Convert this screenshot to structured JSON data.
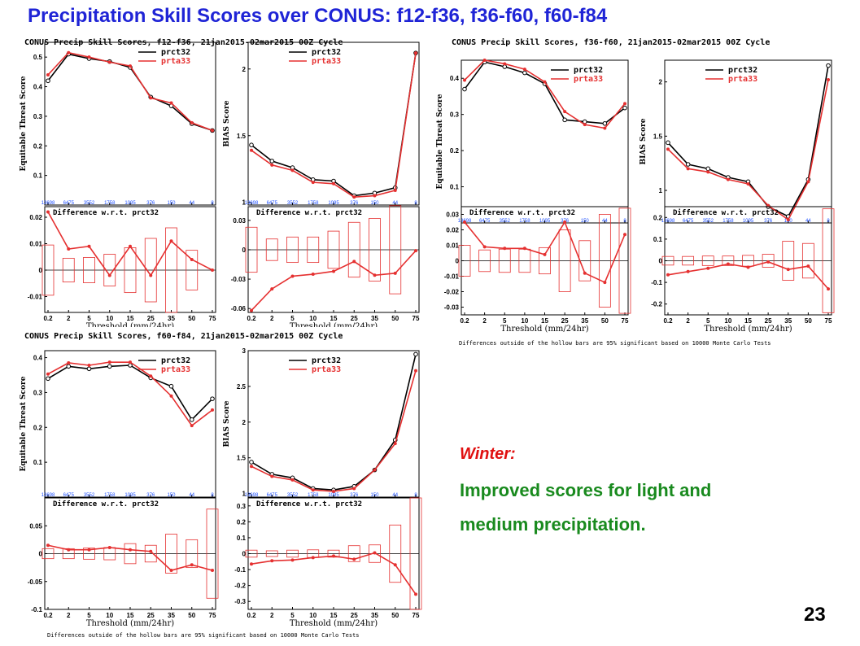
{
  "slide": {
    "title": "Precipitation Skill Scores over CONUS:  f12-f36,  f36-f60,  f60-f84",
    "winter_label": "Winter:",
    "summary_line1": "Improved scores for light and",
    "summary_line2": "medium precipitation.",
    "page_number": "23"
  },
  "colors": {
    "title": "#1f24d6",
    "prct32": "#000000",
    "prta33": "#e53030",
    "counts": "#1f50ff",
    "winter": "#e01010",
    "summary": "#198a1e"
  },
  "chart_data": [
    {
      "type": "line",
      "panel_title": "CONUS Precip Skill Scores, f12-f36, 21jan2015-02mar2015 00Z Cycle",
      "thresholds": [
        "0.2",
        "2",
        "5",
        "10",
        "15",
        "25",
        "35",
        "50",
        "75"
      ],
      "sample_counts": [
        "13698",
        "6475",
        "3552",
        "1758",
        "1095",
        "376",
        "150",
        "44",
        "8"
      ],
      "x_label": "Threshold (mm/24hr)",
      "diff_title": "Difference w.r.t. prct32",
      "ets": {
        "ylabel": "Equitable Threat Score",
        "ylim": [
          0,
          0.55
        ],
        "yticks": [
          0.1,
          0.2,
          0.3,
          0.4,
          0.5
        ],
        "series": [
          {
            "name": "prct32",
            "values": [
              0.42,
              0.51,
              0.495,
              0.485,
              0.465,
              0.365,
              0.335,
              0.275,
              0.252
            ]
          },
          {
            "name": "prta33",
            "values": [
              0.44,
              0.515,
              0.5,
              0.483,
              0.47,
              0.362,
              0.345,
              0.278,
              0.252
            ]
          }
        ]
      },
      "ets_diff": {
        "ylim": [
          -0.016,
          0.024
        ],
        "yticks": [
          -0.01,
          0,
          0.01,
          0.02
        ],
        "values": [
          0.022,
          0.008,
          0.009,
          -0.002,
          0.009,
          -0.002,
          0.011,
          0.004,
          0.0
        ],
        "bars": [
          0.0095,
          0.0045,
          0.0048,
          0.006,
          0.0085,
          0.012,
          0.016,
          0.0075,
          0.0
        ]
      },
      "bias": {
        "ylabel": "BIAS Score",
        "ylim": [
          0.98,
          2.2
        ],
        "yticks": [
          1,
          1.5,
          2
        ],
        "series": [
          {
            "name": "prct32",
            "values": [
              1.43,
              1.31,
              1.26,
              1.17,
              1.16,
              1.05,
              1.07,
              1.11,
              2.12
            ]
          },
          {
            "name": "prta33",
            "values": [
              1.39,
              1.28,
              1.24,
              1.15,
              1.14,
              1.04,
              1.05,
              1.09,
              2.12
            ]
          }
        ]
      },
      "bias_diff": {
        "ylim": [
          -0.064,
          0.044
        ],
        "yticks": [
          -0.06,
          -0.03,
          0,
          0.03
        ],
        "values": [
          -0.062,
          -0.04,
          -0.027,
          -0.025,
          -0.022,
          -0.012,
          -0.026,
          -0.024,
          -0.001
        ],
        "bars": [
          0.023,
          0.011,
          0.013,
          0.013,
          0.019,
          0.028,
          0.032,
          0.045,
          0.0
        ]
      }
    },
    {
      "type": "line",
      "panel_title": "CONUS Precip Skill Scores, f36-f60, 21jan2015-02mar2015 00Z Cycle",
      "thresholds": [
        "0.2",
        "2",
        "5",
        "10",
        "15",
        "25",
        "35",
        "50",
        "75"
      ],
      "sample_counts": [
        "13698",
        "6475",
        "3552",
        "1758",
        "1095",
        "376",
        "150",
        "44",
        "8"
      ],
      "x_label": "Threshold (mm/24hr)",
      "diff_title": "Difference w.r.t. prct32",
      "footnote": "Differences outside of the hollow bars are 95% significant based on 10000 Monte Carlo Tests",
      "ets": {
        "ylabel": "Equitable Threat Score",
        "ylim": [
          0,
          0.45
        ],
        "yticks": [
          0.1,
          0.2,
          0.3,
          0.4
        ],
        "series": [
          {
            "name": "prct32",
            "values": [
              0.37,
              0.445,
              0.432,
              0.415,
              0.385,
              0.285,
              0.28,
              0.275,
              0.318
            ]
          },
          {
            "name": "prta33",
            "values": [
              0.395,
              0.45,
              0.44,
              0.425,
              0.39,
              0.308,
              0.272,
              0.262,
              0.33
            ]
          }
        ]
      },
      "bias": {
        "ylabel": "BIAS Score",
        "ylim": [
          0.7,
          2.2
        ],
        "yticks": [
          1,
          1.5,
          2
        ],
        "series": [
          {
            "name": "prct32",
            "values": [
              1.44,
              1.24,
              1.2,
              1.12,
              1.08,
              0.85,
              0.76,
              1.1,
              2.15
            ]
          },
          {
            "name": "prta33",
            "values": [
              1.38,
              1.2,
              1.17,
              1.1,
              1.06,
              0.86,
              0.73,
              1.08,
              2.02
            ]
          }
        ]
      },
      "ets_diff": {
        "ylim": [
          -0.035,
          0.035
        ],
        "yticks": [
          -0.03,
          -0.02,
          -0.01,
          0,
          0.01,
          0.02,
          0.03
        ],
        "values": [
          0.025,
          0.009,
          0.008,
          0.008,
          0.004,
          0.025,
          -0.008,
          -0.014,
          0.017
        ],
        "bars": [
          0.01,
          0.007,
          0.0075,
          0.0075,
          0.0085,
          0.02,
          0.013,
          0.03,
          0.034
        ]
      },
      "bias_diff": {
        "ylim": [
          -0.25,
          0.25
        ],
        "yticks": [
          -0.2,
          -0.1,
          0,
          0.1,
          0.2
        ],
        "values": [
          -0.065,
          -0.05,
          -0.035,
          -0.015,
          -0.03,
          -0.005,
          -0.04,
          -0.025,
          -0.13
        ],
        "bars": [
          0.02,
          0.02,
          0.022,
          0.022,
          0.025,
          0.03,
          0.09,
          0.08,
          0.24
        ]
      }
    },
    {
      "type": "line",
      "panel_title": "CONUS Precip Skill Scores, f60-f84, 21jan2015-02mar2015 00Z Cycle",
      "thresholds": [
        "0.2",
        "2",
        "5",
        "10",
        "15",
        "25",
        "35",
        "50",
        "75"
      ],
      "sample_counts": [
        "13698",
        "6475",
        "3552",
        "1758",
        "1095",
        "376",
        "150",
        "44",
        "8"
      ],
      "x_label": "Threshold (mm/24hr)",
      "diff_title": "Difference w.r.t. prct32",
      "footnote": "Differences outside of the hollow bars are 95% significant based on 10000 Monte Carlo Tests",
      "ets": {
        "ylabel": "Equitable Threat Score",
        "ylim": [
          0,
          0.42
        ],
        "yticks": [
          0.1,
          0.2,
          0.3,
          0.4
        ],
        "series": [
          {
            "name": "prct32",
            "values": [
              0.34,
              0.375,
              0.368,
              0.375,
              0.378,
              0.342,
              0.318,
              0.222,
              0.282
            ]
          },
          {
            "name": "prta33",
            "values": [
              0.353,
              0.385,
              0.378,
              0.387,
              0.387,
              0.347,
              0.29,
              0.205,
              0.25
            ]
          }
        ]
      },
      "bias": {
        "ylabel": "BIAS Score",
        "ylim": [
          0.95,
          3.0
        ],
        "yticks": [
          1,
          1.5,
          2,
          2.5,
          3
        ],
        "series": [
          {
            "name": "prct32",
            "values": [
              1.44,
              1.27,
              1.22,
              1.07,
              1.05,
              1.1,
              1.33,
              1.75,
              2.95
            ]
          },
          {
            "name": "prta33",
            "values": [
              1.38,
              1.24,
              1.19,
              1.05,
              1.03,
              1.07,
              1.33,
              1.7,
              2.72
            ]
          }
        ]
      },
      "ets_diff": {
        "ylim": [
          -0.1,
          0.1
        ],
        "yticks": [
          -0.1,
          -0.05,
          0,
          0.05
        ],
        "values": [
          0.015,
          0.007,
          0.007,
          0.011,
          0.007,
          0.004,
          -0.03,
          -0.02,
          -0.03
        ],
        "bars": [
          0.009,
          0.009,
          0.01,
          0.011,
          0.018,
          0.015,
          0.035,
          0.025,
          0.08
        ]
      },
      "bias_diff": {
        "ylim": [
          -0.35,
          0.35
        ],
        "yticks": [
          -0.3,
          -0.2,
          -0.1,
          0,
          0.1,
          0.2,
          0.3
        ],
        "values": [
          -0.065,
          -0.045,
          -0.04,
          -0.025,
          -0.015,
          -0.035,
          0.005,
          -0.07,
          -0.255
        ],
        "bars": [
          0.022,
          0.018,
          0.022,
          0.024,
          0.022,
          0.05,
          0.055,
          0.18,
          0.35
        ]
      }
    }
  ]
}
